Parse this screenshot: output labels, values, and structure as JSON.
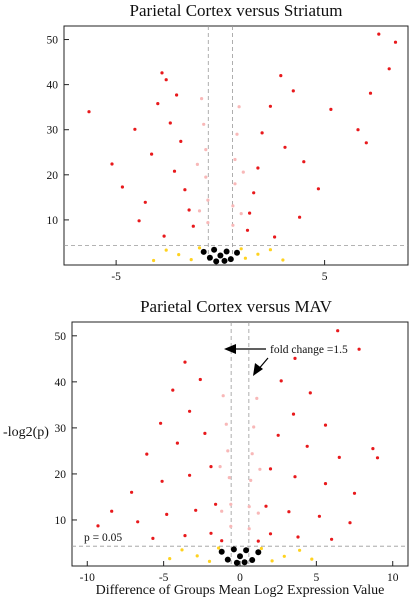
{
  "chart_data": [
    {
      "type": "scatter",
      "title": "Parietal Cortex versus Striatum",
      "xlabel": "",
      "ylabel": "",
      "xlim": [
        -7.5,
        9
      ],
      "ylim": [
        0,
        53
      ],
      "xticks": [
        -5,
        5
      ],
      "yticks": [
        10,
        20,
        30,
        40,
        50
      ],
      "threshold_y": 4.3,
      "fold_change_x": [
        -0.58,
        0.58
      ],
      "series": [
        {
          "color": "#e8191c",
          "values": [
            [
              -2.8,
              42.6
            ],
            [
              -2.6,
              41.1
            ],
            [
              -2.1,
              37.7
            ],
            [
              -3.0,
              35.8
            ],
            [
              -2.4,
              31.5
            ],
            [
              -1.9,
              27.4
            ],
            [
              -3.3,
              24.6
            ],
            [
              -2.2,
              20.8
            ],
            [
              -1.7,
              16.7
            ],
            [
              -1.5,
              12.2
            ],
            [
              -1.3,
              8.6
            ],
            [
              -3.6,
              13.9
            ],
            [
              -4.1,
              30.1
            ],
            [
              -5.2,
              22.4
            ],
            [
              -6.3,
              34.0
            ],
            [
              -4.7,
              17.3
            ],
            [
              -3.9,
              9.8
            ],
            [
              -2.7,
              6.4
            ],
            [
              2.9,
              42.0
            ],
            [
              3.5,
              38.6
            ],
            [
              2.4,
              35.2
            ],
            [
              2.0,
              29.3
            ],
            [
              3.1,
              26.1
            ],
            [
              1.8,
              21.5
            ],
            [
              1.6,
              16.0
            ],
            [
              1.4,
              11.5
            ],
            [
              1.3,
              7.7
            ],
            [
              4.0,
              22.9
            ],
            [
              5.3,
              34.5
            ],
            [
              6.6,
              30.0
            ],
            [
              4.7,
              16.9
            ],
            [
              3.8,
              10.6
            ],
            [
              2.6,
              6.2
            ],
            [
              7.0,
              27.1
            ],
            [
              8.4,
              49.4
            ],
            [
              8.1,
              43.5
            ],
            [
              7.2,
              38.1
            ],
            [
              7.6,
              51.2
            ]
          ]
        },
        {
          "color": "#f8b8b8",
          "values": [
            [
              -0.9,
              36.9
            ],
            [
              -0.8,
              31.2
            ],
            [
              -0.7,
              25.6
            ],
            [
              -0.7,
              19.5
            ],
            [
              -0.6,
              14.4
            ],
            [
              -0.6,
              9.4
            ],
            [
              -1.1,
              22.3
            ],
            [
              -1.0,
              12.0
            ],
            [
              0.9,
              35.1
            ],
            [
              0.8,
              29.0
            ],
            [
              0.7,
              23.4
            ],
            [
              0.7,
              18.0
            ],
            [
              0.6,
              13.1
            ],
            [
              0.6,
              8.8
            ],
            [
              1.1,
              20.6
            ],
            [
              1.0,
              11.4
            ]
          ]
        },
        {
          "color": "#ffd21f",
          "values": [
            [
              -2.6,
              3.3
            ],
            [
              -2.0,
              2.3
            ],
            [
              -1.4,
              1.2
            ],
            [
              -1.0,
              3.8
            ],
            [
              -3.2,
              1.0
            ],
            [
              2.4,
              3.4
            ],
            [
              1.8,
              2.4
            ],
            [
              1.2,
              1.5
            ],
            [
              1.0,
              3.6
            ],
            [
              3.0,
              1.1
            ]
          ]
        },
        {
          "color": "#000000",
          "values": [
            [
              -0.8,
              2.9
            ],
            [
              -0.5,
              1.6
            ],
            [
              -0.3,
              3.4
            ],
            [
              0.0,
              2.1
            ],
            [
              0.3,
              3.0
            ],
            [
              0.5,
              1.3
            ],
            [
              0.8,
              2.7
            ],
            [
              -0.2,
              0.8
            ],
            [
              0.2,
              0.9
            ]
          ]
        }
      ]
    },
    {
      "type": "scatter",
      "title": "Parietal Cortex versus MAV",
      "xlabel": "Difference of Groups Mean Log2 Expression Value",
      "ylabel": "-log2(p)",
      "xlim": [
        -11,
        11
      ],
      "ylim": [
        0,
        53
      ],
      "xticks": [
        -10,
        -5,
        0,
        5,
        10
      ],
      "yticks": [
        10,
        20,
        30,
        40,
        50
      ],
      "threshold_y": 4.3,
      "fold_change_x": [
        -0.58,
        0.58
      ],
      "annotations": {
        "fold_change": "fold change =1.5",
        "p_value": "p = 0.05"
      },
      "series": [
        {
          "color": "#e8191c",
          "values": [
            [
              -3.6,
              44.3
            ],
            [
              -4.4,
              38.2
            ],
            [
              -2.6,
              40.5
            ],
            [
              -5.2,
              31.0
            ],
            [
              -3.3,
              33.6
            ],
            [
              -6.1,
              24.3
            ],
            [
              -4.1,
              26.7
            ],
            [
              -2.3,
              28.8
            ],
            [
              -7.1,
              16.0
            ],
            [
              -5.1,
              18.4
            ],
            [
              -3.3,
              19.7
            ],
            [
              -1.9,
              21.6
            ],
            [
              -6.7,
              9.6
            ],
            [
              -4.8,
              11.2
            ],
            [
              -2.9,
              12.1
            ],
            [
              -1.6,
              13.4
            ],
            [
              -5.7,
              6.0
            ],
            [
              -3.6,
              6.6
            ],
            [
              -1.9,
              7.1
            ],
            [
              -1.2,
              5.5
            ],
            [
              -8.4,
              11.9
            ],
            [
              -9.3,
              8.7
            ],
            [
              3.6,
              45.1
            ],
            [
              4.6,
              37.6
            ],
            [
              2.7,
              40.2
            ],
            [
              5.6,
              30.6
            ],
            [
              3.5,
              33.0
            ],
            [
              6.5,
              23.6
            ],
            [
              4.4,
              26.0
            ],
            [
              2.5,
              28.4
            ],
            [
              7.5,
              15.8
            ],
            [
              5.6,
              17.9
            ],
            [
              3.6,
              19.4
            ],
            [
              2.0,
              21.1
            ],
            [
              7.2,
              9.4
            ],
            [
              5.2,
              10.8
            ],
            [
              3.2,
              11.8
            ],
            [
              1.7,
              13.0
            ],
            [
              6.0,
              5.8
            ],
            [
              3.8,
              6.3
            ],
            [
              2.0,
              7.0
            ],
            [
              1.2,
              5.4
            ],
            [
              8.7,
              25.5
            ],
            [
              9.0,
              23.5
            ],
            [
              6.4,
              51.1
            ],
            [
              7.8,
              47.1
            ]
          ]
        },
        {
          "color": "#f8b8b8",
          "values": [
            [
              -1.1,
              37.0
            ],
            [
              -0.9,
              30.8
            ],
            [
              -0.8,
              25.0
            ],
            [
              -0.7,
              19.2
            ],
            [
              -0.6,
              13.4
            ],
            [
              -0.6,
              8.6
            ],
            [
              -1.3,
              21.6
            ],
            [
              -1.2,
              11.9
            ],
            [
              1.1,
              36.4
            ],
            [
              0.9,
              30.2
            ],
            [
              0.8,
              24.4
            ],
            [
              0.7,
              18.6
            ],
            [
              0.6,
              12.9
            ],
            [
              0.6,
              8.1
            ],
            [
              1.3,
              21.0
            ],
            [
              1.2,
              11.5
            ]
          ]
        },
        {
          "color": "#ffd21f",
          "values": [
            [
              -3.8,
              3.5
            ],
            [
              -2.8,
              2.2
            ],
            [
              -2.0,
              1.0
            ],
            [
              -1.4,
              3.9
            ],
            [
              -4.6,
              1.6
            ],
            [
              3.9,
              3.4
            ],
            [
              2.9,
              2.1
            ],
            [
              2.1,
              1.1
            ],
            [
              1.4,
              3.8
            ],
            [
              4.7,
              1.5
            ]
          ]
        },
        {
          "color": "#000000",
          "values": [
            [
              -1.2,
              3.1
            ],
            [
              -0.8,
              1.4
            ],
            [
              -0.4,
              3.6
            ],
            [
              0.0,
              2.1
            ],
            [
              0.4,
              3.4
            ],
            [
              0.8,
              1.3
            ],
            [
              1.2,
              3.0
            ],
            [
              -0.2,
              0.7
            ],
            [
              0.3,
              0.8
            ]
          ]
        }
      ]
    }
  ]
}
